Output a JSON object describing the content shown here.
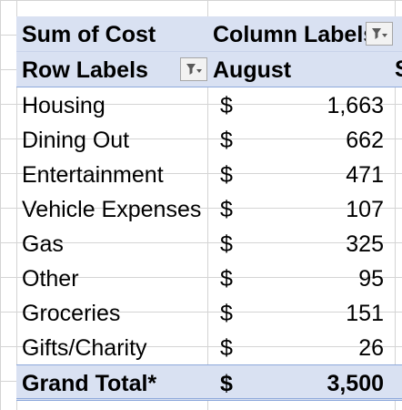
{
  "pivot": {
    "value_field_label": "Sum of Cost",
    "column_labels": "Column Labels",
    "row_labels": "Row Labels",
    "column_value": "August",
    "currency_symbol": "$",
    "rows": [
      {
        "label": "Housing",
        "value": "1,663"
      },
      {
        "label": "Dining Out",
        "value": "662"
      },
      {
        "label": "Entertainment",
        "value": "471"
      },
      {
        "label": "Vehicle Expenses",
        "value": "107"
      },
      {
        "label": "Gas",
        "value": "325"
      },
      {
        "label": "Other",
        "value": "95"
      },
      {
        "label": "Groceries",
        "value": "151"
      },
      {
        "label": "Gifts/Charity",
        "value": "26"
      }
    ],
    "grand_total_label": "Grand Total*",
    "grand_total_value": "3,500",
    "cutoff_next_column": "S"
  },
  "colors": {
    "header_fill": "#d9e1f2",
    "gridline": "#d4d4d4",
    "border_accent": "#8ea9db"
  },
  "icons": {
    "column_filter": "filter-dropdown-icon",
    "row_filter": "filter-dropdown-icon"
  }
}
